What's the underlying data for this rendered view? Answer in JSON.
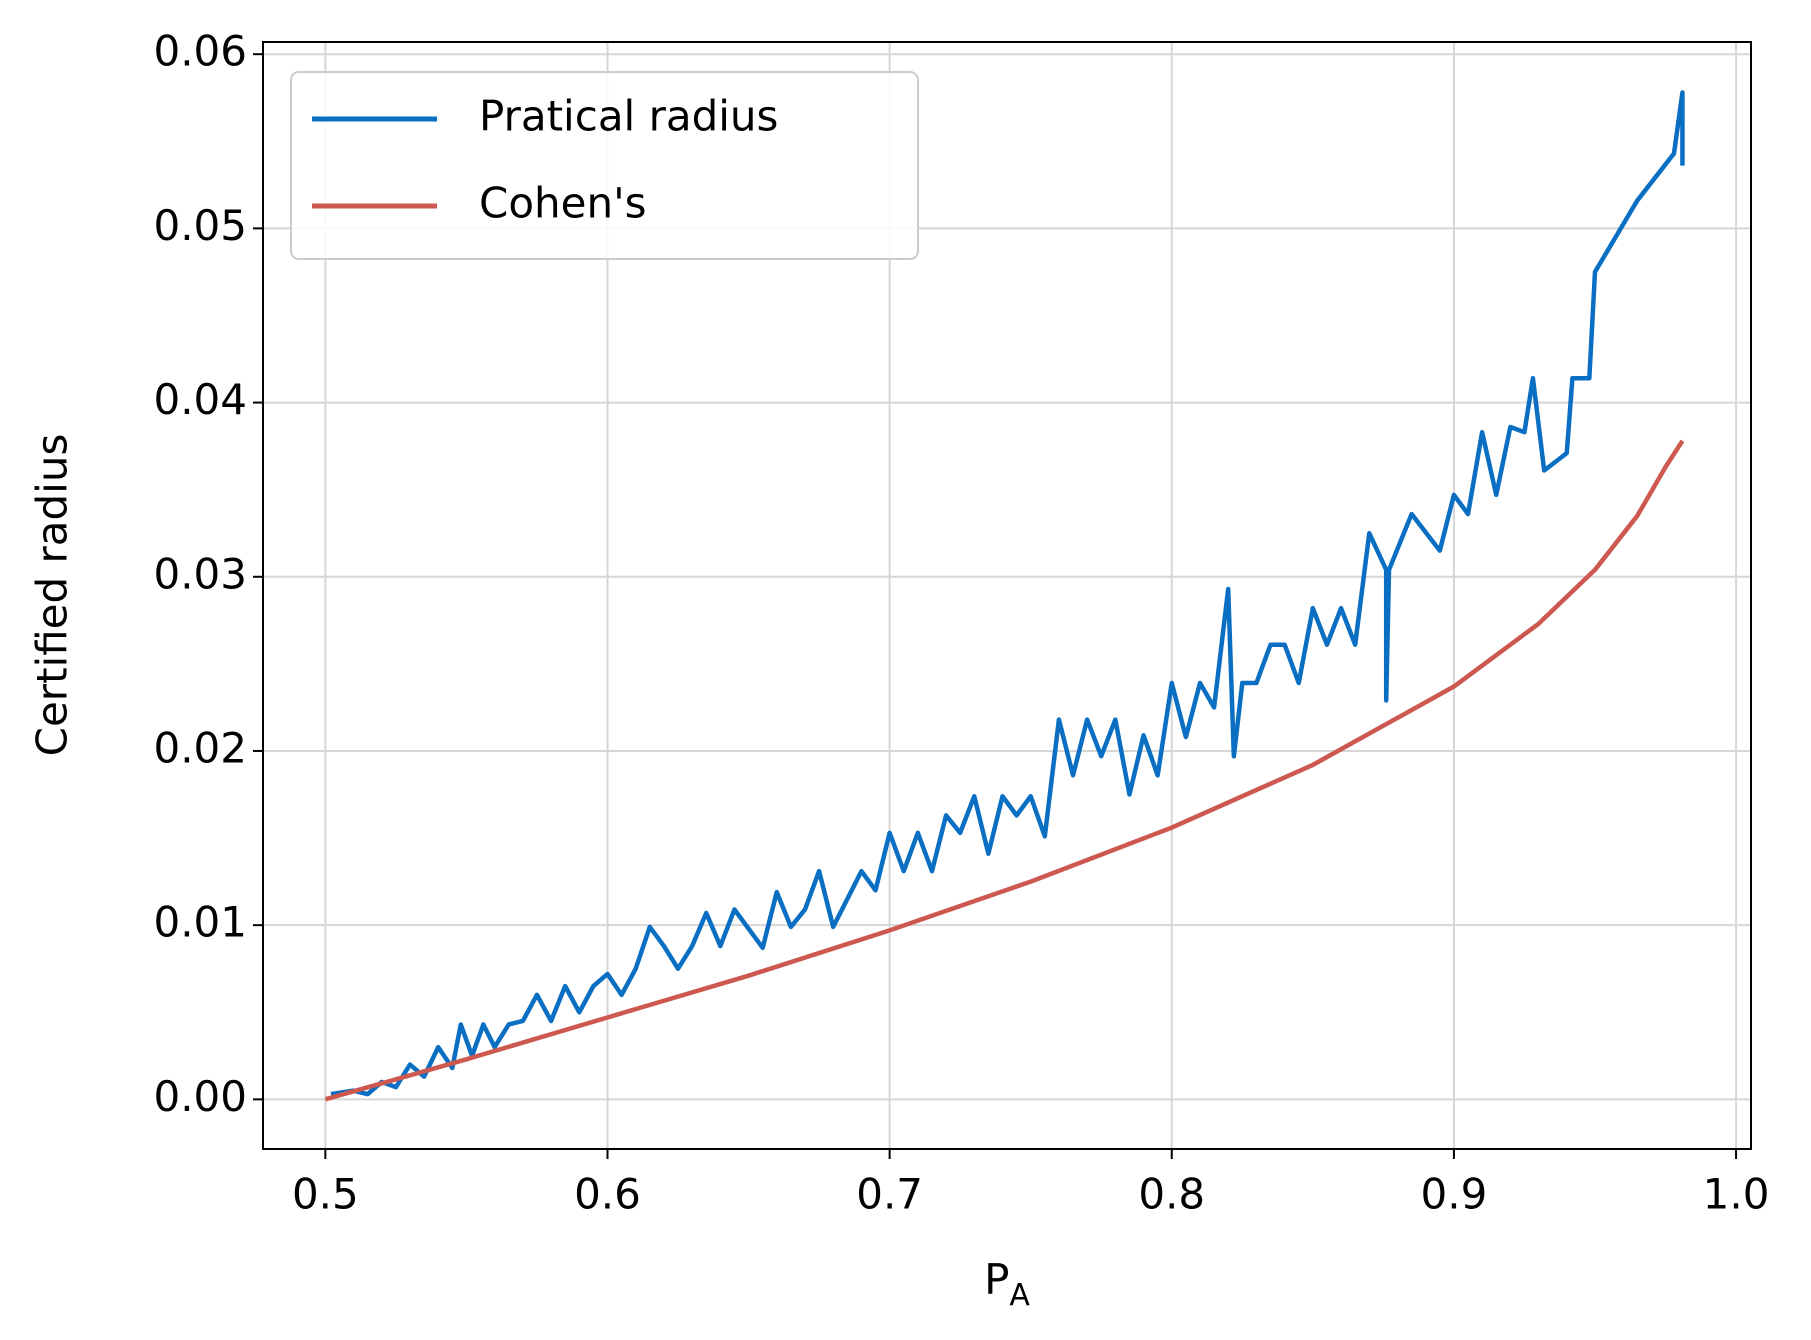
{
  "chart_data": {
    "type": "line",
    "x_label": {
      "main": "P",
      "sub": "A"
    },
    "y_label": "Certified radius",
    "xlim": [
      0.4779,
      1.0053
    ],
    "ylim": [
      -0.00285,
      0.0607
    ],
    "xticks": [
      0.5,
      0.6,
      0.7,
      0.8,
      0.9,
      {
        "value": 1.0,
        "label": "1.0"
      }
    ],
    "yticks": [
      {
        "value": 0,
        "label": "0.00"
      },
      {
        "value": 0.01,
        "label": "0.01"
      },
      {
        "value": 0.02,
        "label": "0.02"
      },
      {
        "value": 0.03,
        "label": "0.03"
      },
      {
        "value": 0.04,
        "label": "0.04"
      },
      {
        "value": 0.05,
        "label": "0.05"
      },
      {
        "value": 0.06,
        "label": "0.06"
      }
    ],
    "grid": true,
    "legend": "upper left",
    "series": [
      {
        "name": "Pratical radius",
        "color": "#0a6fc2",
        "x": [
          0.502,
          0.51,
          0.515,
          0.52,
          0.525,
          0.53,
          0.535,
          0.54,
          0.545,
          0.548,
          0.552,
          0.556,
          0.56,
          0.565,
          0.57,
          0.575,
          0.58,
          0.585,
          0.59,
          0.595,
          0.6,
          0.605,
          0.61,
          0.615,
          0.62,
          0.625,
          0.63,
          0.635,
          0.64,
          0.645,
          0.65,
          0.655,
          0.66,
          0.665,
          0.67,
          0.675,
          0.68,
          0.69,
          0.695,
          0.7,
          0.705,
          0.71,
          0.715,
          0.72,
          0.725,
          0.73,
          0.735,
          0.74,
          0.745,
          0.75,
          0.755,
          0.76,
          0.765,
          0.77,
          0.775,
          0.78,
          0.785,
          0.79,
          0.795,
          0.8,
          0.805,
          0.81,
          0.815,
          0.82,
          0.822,
          0.825,
          0.83,
          0.835,
          0.84,
          0.845,
          0.85,
          0.855,
          0.86,
          0.865,
          0.87,
          0.876,
          0.876,
          0.877,
          0.885,
          0.895,
          0.9,
          0.905,
          0.91,
          0.915,
          0.92,
          0.925,
          0.928,
          0.932,
          0.94,
          0.942,
          0.948,
          0.95,
          0.965,
          0.978,
          0.981,
          0.981
        ],
        "values": [
          0.0003,
          0.0005,
          0.0003,
          0.001,
          0.0007,
          0.002,
          0.0013,
          0.003,
          0.0018,
          0.0043,
          0.0025,
          0.0043,
          0.003,
          0.0043,
          0.0045,
          0.006,
          0.0045,
          0.0065,
          0.005,
          0.0065,
          0.0072,
          0.006,
          0.0075,
          0.0099,
          0.0088,
          0.0075,
          0.0088,
          0.0107,
          0.0088,
          0.0109,
          0.0098,
          0.0087,
          0.0119,
          0.0099,
          0.0109,
          0.0131,
          0.0099,
          0.0131,
          0.012,
          0.0153,
          0.0131,
          0.0153,
          0.0131,
          0.0163,
          0.0153,
          0.0174,
          0.0141,
          0.0174,
          0.0163,
          0.0174,
          0.0151,
          0.0218,
          0.0186,
          0.0218,
          0.0197,
          0.0218,
          0.0175,
          0.0209,
          0.0186,
          0.0239,
          0.0208,
          0.0239,
          0.0225,
          0.0293,
          0.0197,
          0.0239,
          0.0239,
          0.0261,
          0.0261,
          0.0239,
          0.0282,
          0.0261,
          0.0282,
          0.0261,
          0.0325,
          0.0304,
          0.0229,
          0.0304,
          0.0336,
          0.0315,
          0.0347,
          0.0336,
          0.0383,
          0.0347,
          0.0386,
          0.0383,
          0.0414,
          0.0361,
          0.0371,
          0.0414,
          0.0414,
          0.0475,
          0.0516,
          0.0543,
          0.0578,
          0.0536
        ]
      },
      {
        "name": "Cohen's",
        "color": "#cd5850",
        "x": [
          0.5,
          0.55,
          0.6,
          0.65,
          0.7,
          0.75,
          0.8,
          0.85,
          0.9,
          0.93,
          0.95,
          0.965,
          0.975,
          0.981
        ],
        "values": [
          0,
          0.0023,
          0.0047,
          0.0071,
          0.0097,
          0.0125,
          0.0156,
          0.0192,
          0.0237,
          0.0273,
          0.0304,
          0.0335,
          0.0363,
          0.0378
        ]
      }
    ]
  }
}
